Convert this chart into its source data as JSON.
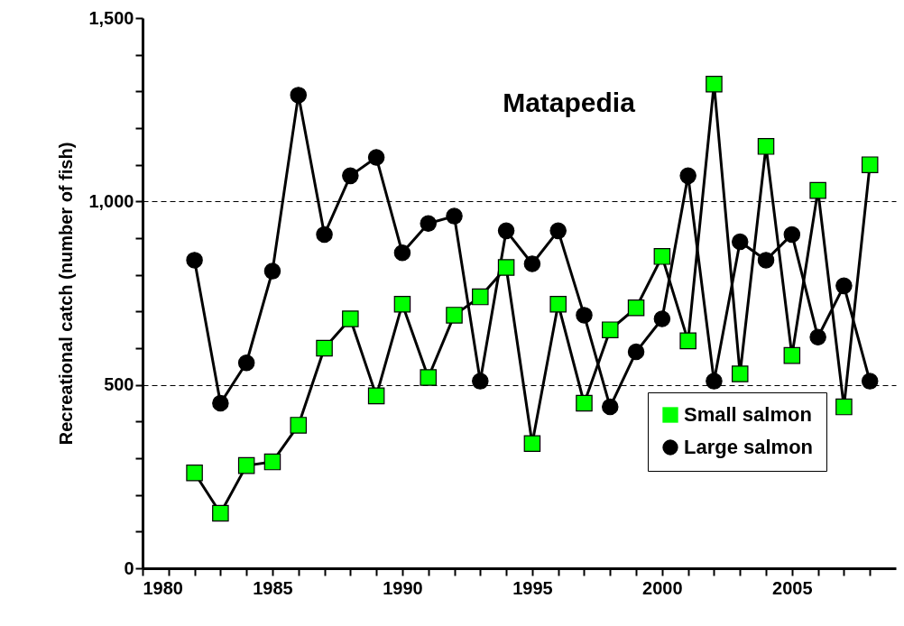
{
  "chart_data": {
    "type": "line",
    "title": "Matapedia",
    "ylabel": "Recreational catch (number of fish)",
    "x": [
      1982,
      1983,
      1984,
      1985,
      1986,
      1987,
      1988,
      1989,
      1990,
      1991,
      1992,
      1993,
      1994,
      1995,
      1996,
      1997,
      1998,
      1999,
      2000,
      2001,
      2002,
      2003,
      2004,
      2005,
      2006,
      2007,
      2008
    ],
    "series": [
      {
        "name": "Small salmon",
        "color": "#00ff00",
        "marker": "square",
        "values": [
          260,
          150,
          280,
          290,
          390,
          600,
          680,
          470,
          720,
          520,
          690,
          740,
          820,
          340,
          720,
          450,
          650,
          710,
          850,
          620,
          1320,
          530,
          1150,
          580,
          1030,
          440,
          1100
        ]
      },
      {
        "name": "Large salmon",
        "color": "#000000",
        "marker": "circle",
        "values": [
          840,
          450,
          560,
          810,
          1290,
          910,
          1070,
          1120,
          860,
          940,
          960,
          510,
          920,
          830,
          920,
          690,
          440,
          590,
          680,
          1070,
          510,
          890,
          840,
          910,
          630,
          770,
          510
        ]
      }
    ],
    "xlim": [
      1980,
      2009
    ],
    "xticks": [
      1980,
      {
        "value": 1981,
        "label": null
      },
      {
        "value": 1982,
        "label": null
      },
      {
        "value": 1983,
        "label": null
      },
      {
        "value": 1984,
        "label": null
      },
      1985,
      {
        "value": 1986,
        "label": null
      },
      {
        "value": 1987,
        "label": null
      },
      {
        "value": 1988,
        "label": null
      },
      {
        "value": 1989,
        "label": null
      },
      1990,
      {
        "value": 1991,
        "label": null
      },
      {
        "value": 1992,
        "label": null
      },
      {
        "value": 1993,
        "label": null
      },
      {
        "value": 1994,
        "label": null
      },
      1995,
      {
        "value": 1996,
        "label": null
      },
      {
        "value": 1997,
        "label": null
      },
      {
        "value": 1998,
        "label": null
      },
      {
        "value": 1999,
        "label": null
      },
      2000,
      {
        "value": 2001,
        "label": null
      },
      {
        "value": 2002,
        "label": null
      },
      {
        "value": 2003,
        "label": null
      },
      {
        "value": 2004,
        "label": null
      },
      2005,
      {
        "value": 2006,
        "label": null
      },
      {
        "value": 2007,
        "label": null
      },
      {
        "value": 2008,
        "label": null
      }
    ],
    "ylim": [
      0,
      1500
    ],
    "yticks": [
      0,
      {
        "value": 100,
        "label": null
      },
      {
        "value": 200,
        "label": null
      },
      {
        "value": 300,
        "label": null
      },
      {
        "value": 400,
        "label": null
      },
      500,
      {
        "value": 600,
        "label": null
      },
      {
        "value": 700,
        "label": null
      },
      {
        "value": 800,
        "label": null
      },
      {
        "value": 900,
        "label": null
      },
      {
        "value": 1000,
        "label": "1,000"
      },
      {
        "value": 1100,
        "label": null
      },
      {
        "value": 1200,
        "label": null
      },
      {
        "value": 1300,
        "label": null
      },
      {
        "value": 1400,
        "label": null
      },
      {
        "value": 1500,
        "label": "1,500"
      }
    ],
    "grid": "y",
    "line_style": "solid",
    "legend": "bottom right"
  }
}
